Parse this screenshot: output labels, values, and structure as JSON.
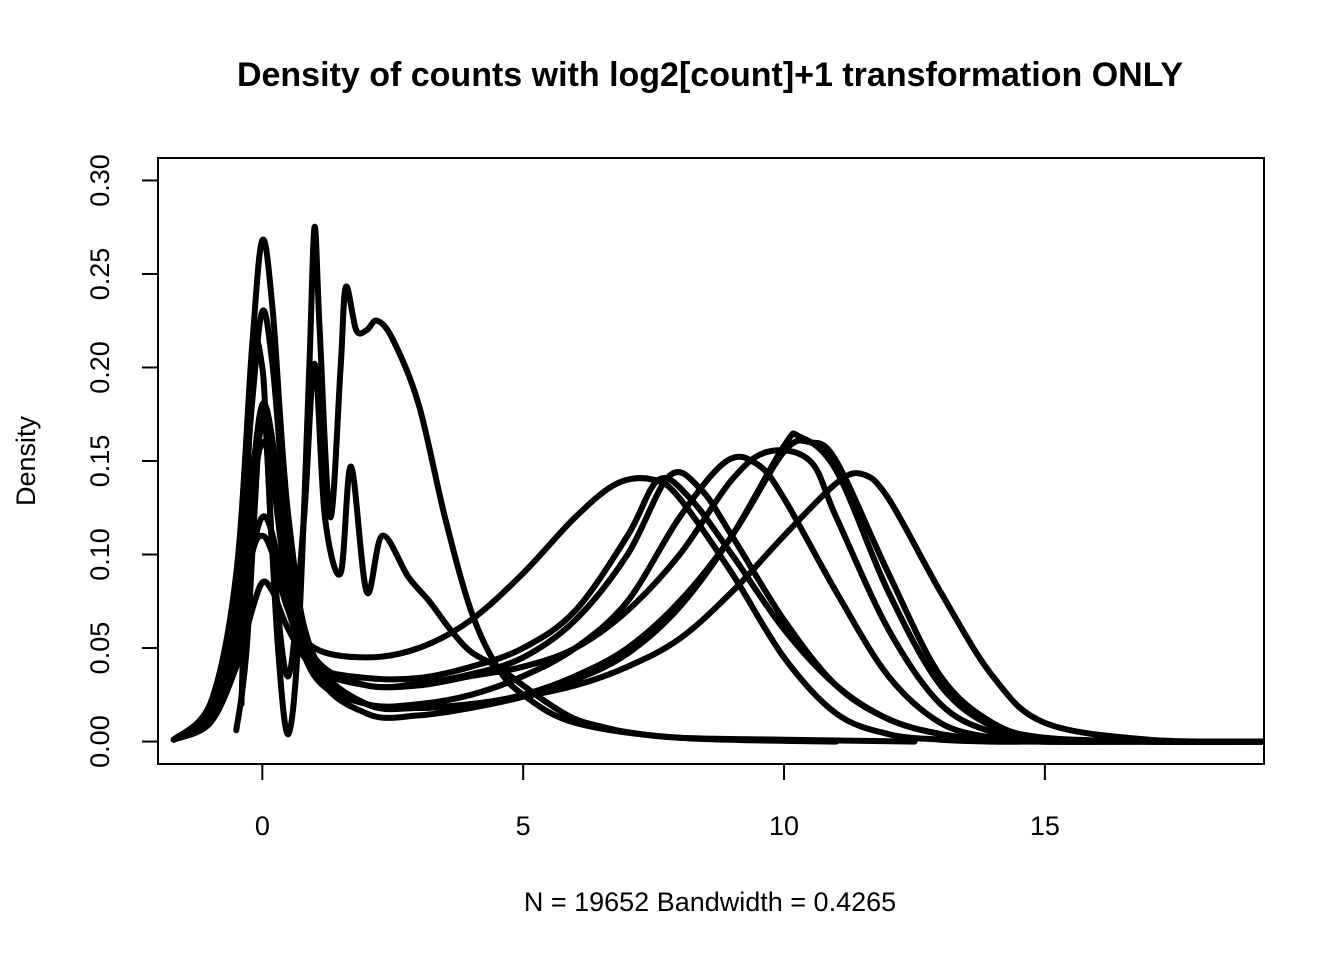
{
  "chart_data": {
    "type": "line",
    "title": "Density of counts with log2[count]+1 transformation ONLY",
    "xlabel": "N = 19652   Bandwidth = 0.4265",
    "ylabel": "Density",
    "xlim": [
      -2,
      19.2
    ],
    "ylim": [
      -0.012,
      0.312
    ],
    "x_ticks": [
      0,
      5,
      10,
      15
    ],
    "x_tick_labels": [
      "0",
      "5",
      "10",
      "15"
    ],
    "y_ticks": [
      0.0,
      0.05,
      0.1,
      0.15,
      0.2,
      0.25,
      0.3
    ],
    "y_tick_labels": [
      "0.00",
      "0.05",
      "0.10",
      "0.15",
      "0.20",
      "0.25",
      "0.30"
    ],
    "grid": false,
    "legend": "none",
    "line_color": "#000000",
    "series": [
      {
        "x": [
          -1.7,
          -1.0,
          -0.5,
          -0.2,
          0.0,
          0.2,
          0.5,
          1.0,
          2.0,
          3.0,
          4.0,
          5.0,
          6.0,
          7.0,
          7.6,
          8.2,
          9.0,
          10.0,
          11.0,
          12.0,
          13.0,
          14.0,
          15.0,
          17.0,
          19.2
        ],
        "y": [
          0.001,
          0.01,
          0.04,
          0.07,
          0.085,
          0.08,
          0.06,
          0.04,
          0.034,
          0.034,
          0.04,
          0.05,
          0.07,
          0.11,
          0.14,
          0.13,
          0.1,
          0.06,
          0.03,
          0.012,
          0.004,
          0.001,
          0.0,
          0.0,
          0.0
        ]
      },
      {
        "x": [
          -1.7,
          -1.0,
          -0.5,
          -0.2,
          0.0,
          0.2,
          0.5,
          1.0,
          2.0,
          3.0,
          4.0,
          5.0,
          6.0,
          7.0,
          7.8,
          8.4,
          9.0,
          10.0,
          11.0,
          12.0,
          13.0,
          14.0,
          15.0,
          17.0,
          19.2
        ],
        "y": [
          0.001,
          0.015,
          0.06,
          0.13,
          0.17,
          0.15,
          0.09,
          0.045,
          0.03,
          0.031,
          0.036,
          0.045,
          0.065,
          0.1,
          0.142,
          0.135,
          0.11,
          0.065,
          0.03,
          0.012,
          0.004,
          0.001,
          0.0,
          0.0,
          0.0
        ]
      },
      {
        "x": [
          -1.7,
          -1.0,
          -0.5,
          -0.2,
          0.0,
          0.2,
          0.5,
          1.0,
          2.0,
          3.0,
          4.0,
          5.0,
          6.0,
          7.0,
          8.0,
          9.0,
          10.0,
          10.5,
          11.0,
          12.0,
          13.0,
          14.0,
          15.0,
          17.0,
          19.2
        ],
        "y": [
          0.001,
          0.02,
          0.08,
          0.18,
          0.23,
          0.2,
          0.11,
          0.045,
          0.02,
          0.018,
          0.02,
          0.025,
          0.035,
          0.05,
          0.075,
          0.11,
          0.155,
          0.16,
          0.15,
          0.09,
          0.035,
          0.01,
          0.002,
          0.0,
          0.0
        ]
      },
      {
        "x": [
          -1.7,
          -1.0,
          -0.5,
          -0.2,
          0.0,
          0.2,
          0.5,
          1.0,
          2.0,
          3.0,
          4.0,
          5.0,
          6.0,
          7.0,
          8.0,
          9.0,
          10.0,
          10.3,
          11.0,
          12.0,
          13.0,
          14.0,
          15.0,
          17.0,
          19.2
        ],
        "y": [
          0.001,
          0.02,
          0.09,
          0.21,
          0.268,
          0.23,
          0.12,
          0.04,
          0.015,
          0.014,
          0.018,
          0.024,
          0.033,
          0.047,
          0.072,
          0.11,
          0.158,
          0.163,
          0.145,
          0.08,
          0.03,
          0.008,
          0.002,
          0.0,
          0.0
        ]
      },
      {
        "x": [
          -1.7,
          -1.0,
          -0.5,
          -0.2,
          0.0,
          0.2,
          0.5,
          1.0,
          2.0,
          3.0,
          4.0,
          5.0,
          6.0,
          7.0,
          8.0,
          9.0,
          10.0,
          11.0,
          11.5,
          12.0,
          13.0,
          14.0,
          15.0,
          17.0,
          19.2
        ],
        "y": [
          0.001,
          0.015,
          0.06,
          0.14,
          0.18,
          0.16,
          0.09,
          0.04,
          0.02,
          0.018,
          0.02,
          0.024,
          0.03,
          0.04,
          0.055,
          0.08,
          0.11,
          0.138,
          0.143,
          0.13,
          0.08,
          0.035,
          0.01,
          0.001,
          0.0
        ]
      },
      {
        "x": [
          -1.7,
          -1.0,
          -0.5,
          -0.2,
          0.0,
          0.2,
          0.5,
          1.0,
          2.0,
          3.0,
          4.0,
          5.0,
          6.0,
          7.0,
          8.0,
          9.0,
          9.7,
          10.5,
          11.0,
          12.0,
          13.0,
          14.0,
          15.0,
          17.0,
          19.2
        ],
        "y": [
          0.001,
          0.012,
          0.05,
          0.1,
          0.12,
          0.11,
          0.07,
          0.04,
          0.03,
          0.03,
          0.035,
          0.04,
          0.05,
          0.07,
          0.1,
          0.14,
          0.155,
          0.15,
          0.12,
          0.06,
          0.02,
          0.005,
          0.001,
          0.0,
          0.0
        ]
      },
      {
        "x": [
          -1.7,
          -1.0,
          -0.5,
          -0.2,
          0.0,
          0.2,
          0.5,
          1.0,
          2.0,
          3.0,
          4.0,
          5.0,
          6.0,
          7.0,
          8.0,
          8.9,
          9.5,
          10.0,
          11.0,
          12.0,
          13.0,
          14.0,
          15.0,
          17.0,
          19.2
        ],
        "y": [
          0.001,
          0.015,
          0.06,
          0.13,
          0.16,
          0.14,
          0.08,
          0.035,
          0.02,
          0.02,
          0.025,
          0.035,
          0.05,
          0.075,
          0.12,
          0.15,
          0.148,
          0.13,
          0.08,
          0.035,
          0.01,
          0.002,
          0.0,
          0.0,
          0.0
        ]
      },
      {
        "x": [
          -1.7,
          -1.0,
          -0.5,
          -0.2,
          0.0,
          0.2,
          0.5,
          1.0,
          2.0,
          3.0,
          4.0,
          5.0,
          6.0,
          6.8,
          7.5,
          8.0,
          9.0,
          10.0,
          11.0,
          12.0,
          13.0,
          14.0,
          15.0,
          17.0,
          19.2
        ],
        "y": [
          0.001,
          0.012,
          0.05,
          0.1,
          0.11,
          0.1,
          0.07,
          0.05,
          0.045,
          0.05,
          0.065,
          0.09,
          0.12,
          0.138,
          0.14,
          0.13,
          0.09,
          0.045,
          0.015,
          0.004,
          0.001,
          0.0,
          0.0,
          0.0,
          0.0
        ]
      },
      {
        "x": [
          -0.5,
          -0.3,
          0.0,
          0.2,
          0.5,
          0.8,
          1.0,
          1.2,
          1.5,
          1.7,
          2.0,
          2.3,
          2.8,
          3.2,
          3.6,
          4.0,
          4.5,
          5.0,
          5.5,
          6.0,
          6.5,
          7.0,
          8.0,
          10.0,
          12.5
        ],
        "y": [
          0.006,
          0.05,
          0.18,
          0.1,
          0.035,
          0.12,
          0.202,
          0.12,
          0.09,
          0.147,
          0.08,
          0.11,
          0.088,
          0.075,
          0.06,
          0.048,
          0.04,
          0.03,
          0.02,
          0.012,
          0.008,
          0.005,
          0.002,
          0.001,
          0.0
        ]
      },
      {
        "x": [
          -0.4,
          -0.2,
          0.0,
          0.1,
          0.3,
          0.5,
          0.7,
          0.9,
          1.0,
          1.1,
          1.3,
          1.5,
          1.6,
          1.8,
          2.0,
          2.2,
          2.5,
          3.0,
          3.5,
          4.0,
          4.5,
          5.0,
          6.0,
          8.0,
          11.0
        ],
        "y": [
          0.02,
          0.2,
          0.2,
          0.15,
          0.05,
          0.004,
          0.06,
          0.2,
          0.275,
          0.22,
          0.12,
          0.2,
          0.243,
          0.22,
          0.22,
          0.225,
          0.215,
          0.18,
          0.12,
          0.07,
          0.04,
          0.025,
          0.01,
          0.002,
          0.0
        ]
      }
    ]
  }
}
